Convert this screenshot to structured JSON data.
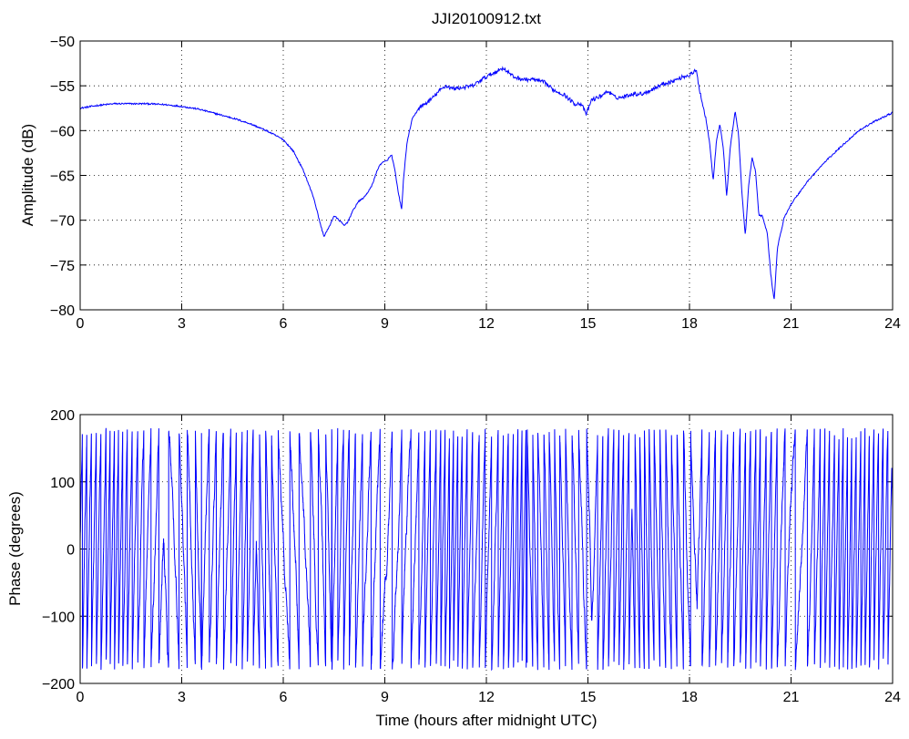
{
  "chart_data": [
    {
      "type": "line",
      "title": "JJI20100912.txt",
      "xlabel": "",
      "ylabel": "Amplitude (dB)",
      "xlim": [
        0,
        24
      ],
      "ylim": [
        -80,
        -50
      ],
      "xticks": [
        0,
        3,
        6,
        9,
        12,
        15,
        18,
        21,
        24
      ],
      "xtick_labels": [
        "0",
        "3",
        "6",
        "9",
        "12",
        "15",
        "18",
        "21",
        "24"
      ],
      "yticks": [
        -80,
        -75,
        -70,
        -65,
        -60,
        -55,
        -50
      ],
      "ytick_labels": [
        "−80",
        "−75",
        "−70",
        "−65",
        "−60",
        "−55",
        "−50"
      ],
      "grid": true,
      "line_color": "#0000ff",
      "series": [
        {
          "x": [
            0,
            0.5,
            1,
            1.5,
            2,
            2.5,
            3,
            3.5,
            4,
            4.5,
            5,
            5.5,
            6,
            6.3,
            6.6,
            6.9,
            7.1,
            7.2,
            7.35,
            7.5,
            7.65,
            7.8,
            7.9,
            8.05,
            8.2,
            8.4,
            8.6,
            8.8,
            8.9,
            9.05,
            9.2,
            9.3,
            9.4,
            9.5,
            9.55,
            9.65,
            9.8,
            10,
            10.2,
            10.4,
            10.6,
            10.8,
            11,
            11.3,
            11.6,
            11.9,
            12.2,
            12.5,
            12.8,
            13.1,
            13.4,
            13.7,
            14,
            14.3,
            14.6,
            14.8,
            14.95,
            15.1,
            15.3,
            15.6,
            15.8,
            16,
            16.3,
            16.6,
            16.9,
            17.2,
            17.5,
            17.8,
            18,
            18.2,
            18.3,
            18.5,
            18.6,
            18.7,
            18.8,
            18.9,
            19.0,
            19.1,
            19.2,
            19.35,
            19.45,
            19.55,
            19.65,
            19.75,
            19.85,
            19.95,
            20.05,
            20.15,
            20.3,
            20.4,
            20.5,
            20.6,
            20.8,
            21,
            21.5,
            22,
            22.5,
            23,
            23.5,
            24
          ],
          "y": [
            -57.5,
            -57.2,
            -57.0,
            -57.0,
            -57.0,
            -57.1,
            -57.3,
            -57.6,
            -58.1,
            -58.6,
            -59.2,
            -60.0,
            -61.0,
            -62.3,
            -64.5,
            -67.5,
            -70.5,
            -71.8,
            -70.8,
            -69.5,
            -70.0,
            -70.6,
            -70.2,
            -69.0,
            -68.0,
            -67.4,
            -66.3,
            -64.2,
            -63.6,
            -63.4,
            -62.7,
            -64.5,
            -67.0,
            -68.8,
            -65.5,
            -61.5,
            -58.8,
            -57.5,
            -57.0,
            -56.4,
            -55.6,
            -55.0,
            -55.3,
            -55.2,
            -55.0,
            -54.2,
            -53.6,
            -53.0,
            -54.0,
            -54.3,
            -54.3,
            -54.6,
            -55.5,
            -56.0,
            -57.0,
            -57.0,
            -58.2,
            -56.6,
            -56.3,
            -55.6,
            -56.3,
            -56.3,
            -55.9,
            -55.9,
            -55.4,
            -54.8,
            -54.5,
            -54.0,
            -53.8,
            -53.3,
            -55.5,
            -59.0,
            -61.5,
            -65.6,
            -61.0,
            -59.3,
            -62.0,
            -67.4,
            -62.0,
            -57.8,
            -60.5,
            -67.0,
            -71.8,
            -66.0,
            -63.0,
            -64.5,
            -69.5,
            -69.5,
            -71.5,
            -76.0,
            -79.0,
            -73.0,
            -69.7,
            -68.2,
            -65.6,
            -63.5,
            -61.7,
            -60.0,
            -58.9,
            -58.0
          ]
        }
      ]
    },
    {
      "type": "line",
      "title": "",
      "xlabel": "Time (hours after midnight UTC)",
      "ylabel": "Phase (degrees)",
      "xlim": [
        0,
        24
      ],
      "ylim": [
        -200,
        200
      ],
      "xticks": [
        0,
        3,
        6,
        9,
        12,
        15,
        18,
        21,
        24
      ],
      "xtick_labels": [
        "0",
        "3",
        "6",
        "9",
        "12",
        "15",
        "18",
        "21",
        "24"
      ],
      "yticks": [
        -200,
        -100,
        0,
        100,
        200
      ],
      "ytick_labels": [
        "−200",
        "−100",
        "0",
        "100",
        "200"
      ],
      "grid": true,
      "line_color": "#0000ff",
      "series": [
        {
          "wrap_range": [
            -180,
            180
          ],
          "x": [
            0,
            0.5,
            1,
            1.5,
            2,
            2.5,
            3,
            3.5,
            4,
            4.5,
            5,
            5.5,
            6,
            6.5,
            7,
            7.5,
            8,
            8.5,
            9,
            9.5,
            10,
            10.5,
            11,
            11.5,
            12,
            12.5,
            13,
            13.5,
            14,
            14.5,
            15,
            15.5,
            16,
            16.5,
            17,
            17.5,
            18,
            18.5,
            19,
            19.5,
            20,
            20.5,
            21,
            21.5,
            22,
            22.5,
            23,
            23.5,
            24
          ],
          "rate_deg_per_hour": [
            2600,
            2300,
            2800,
            2500,
            1600,
            1200,
            1400,
            1800,
            1500,
            2000,
            2400,
            2200,
            1100,
            1000,
            1700,
            2400,
            2000,
            1600,
            900,
            1200,
            1900,
            2500,
            2800,
            2400,
            1700,
            2300,
            2900,
            2500,
            2100,
            1800,
            1600,
            2300,
            2500,
            2800,
            2400,
            2000,
            1500,
            1700,
            1900,
            2100,
            2400,
            2300,
            900,
            1400,
            2600,
            2900,
            2800,
            2700,
            2600
          ],
          "noise_deg": 15
        }
      ]
    }
  ]
}
